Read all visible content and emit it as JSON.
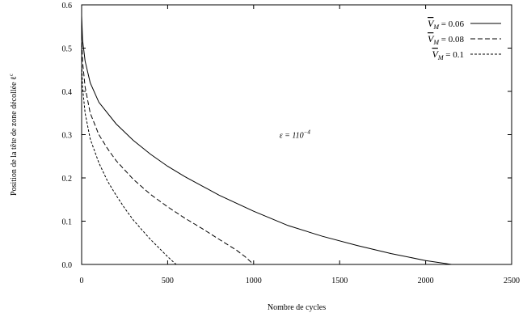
{
  "chart_data": {
    "type": "line",
    "title": "",
    "xlabel": "Nombre de cycles",
    "ylabel": "Position de la tête de zone décollée ℓ",
    "ylabel_sup": "c",
    "xlim": [
      0,
      2500
    ],
    "ylim": [
      0,
      0.6
    ],
    "xticks": [
      0,
      500,
      1000,
      1500,
      2000,
      2500
    ],
    "xtick_labels": [
      "0",
      "500",
      "1000",
      "1500",
      "2000",
      "2500"
    ],
    "yticks": [
      0,
      0.1,
      0.2,
      0.3,
      0.4,
      0.5,
      0.6
    ],
    "ytick_labels": [
      "0.0",
      "0.1",
      "0.2",
      "0.3",
      "0.4",
      "0.5",
      "0.6"
    ],
    "grid": false,
    "legend_position": "top-right",
    "annotation": {
      "text": "ε = 110",
      "exponent": "−4",
      "x": 1150,
      "y": 0.3
    },
    "series": [
      {
        "name": "V̄M = 0.06",
        "legend": {
          "symbol": "V",
          "sub": "M",
          "rest": " = 0.06"
        },
        "dash": "solid",
        "x": [
          0,
          5,
          20,
          50,
          100,
          200,
          300,
          400,
          500,
          600,
          800,
          1000,
          1200,
          1400,
          1600,
          1800,
          2000,
          2100,
          2150
        ],
        "y": [
          0.575,
          0.52,
          0.47,
          0.42,
          0.375,
          0.325,
          0.287,
          0.255,
          0.227,
          0.203,
          0.16,
          0.123,
          0.09,
          0.065,
          0.044,
          0.025,
          0.009,
          0.003,
          0.0
        ]
      },
      {
        "name": "V̄M = 0.08",
        "legend": {
          "symbol": "V",
          "sub": "M",
          "rest": " = 0.08"
        },
        "dash": "long",
        "x": [
          0,
          5,
          20,
          50,
          100,
          150,
          200,
          300,
          400,
          500,
          600,
          700,
          800,
          900,
          950,
          1000
        ],
        "y": [
          0.53,
          0.47,
          0.41,
          0.35,
          0.3,
          0.268,
          0.24,
          0.197,
          0.162,
          0.133,
          0.107,
          0.083,
          0.058,
          0.033,
          0.018,
          0.0
        ]
      },
      {
        "name": "V̄M = 0.1",
        "legend": {
          "symbol": "V",
          "sub": "M",
          "rest": " = 0.1"
        },
        "dash": "short",
        "x": [
          0,
          5,
          20,
          50,
          100,
          150,
          200,
          250,
          300,
          350,
          400,
          450,
          500,
          530,
          550
        ],
        "y": [
          0.47,
          0.41,
          0.35,
          0.29,
          0.235,
          0.193,
          0.16,
          0.13,
          0.103,
          0.08,
          0.058,
          0.038,
          0.018,
          0.007,
          0.0
        ]
      }
    ]
  }
}
